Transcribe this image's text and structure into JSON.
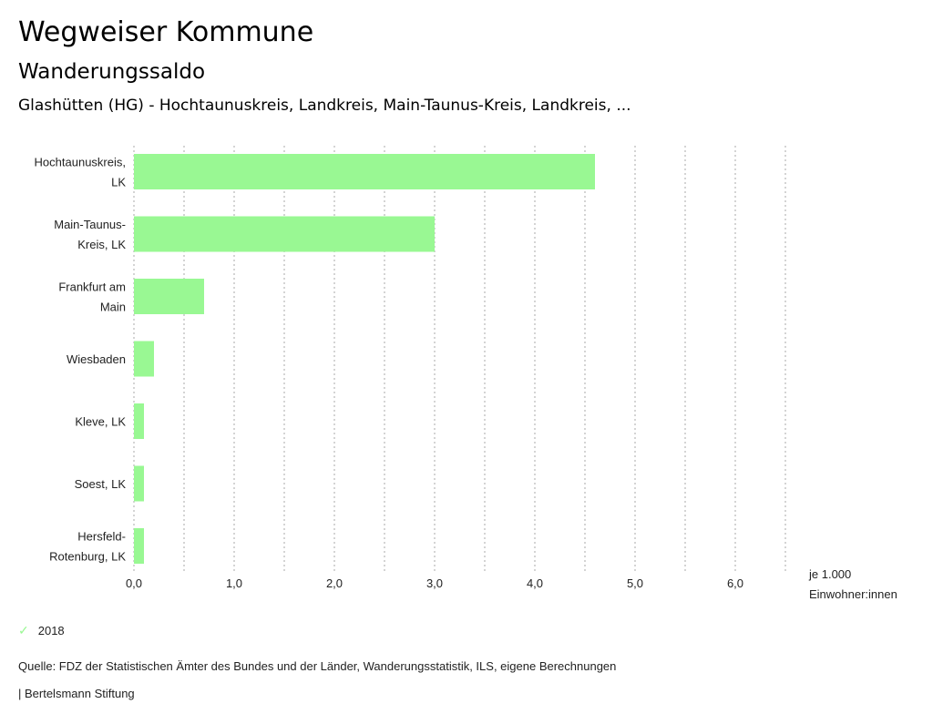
{
  "header": {
    "title": "Wegweiser Kommune",
    "subtitle": "Wanderungssaldo",
    "region": "Glashütten (HG) - Hochtaunuskreis, Landkreis, Main-Taunus-Kreis, Landkreis, ..."
  },
  "chart_data": {
    "type": "bar",
    "orientation": "horizontal",
    "categories": [
      [
        "Hochtaunuskreis,",
        "LK"
      ],
      [
        "Main-Taunus-",
        "Kreis, LK"
      ],
      [
        "Frankfurt am",
        "Main"
      ],
      [
        "Wiesbaden"
      ],
      [
        "Kleve, LK"
      ],
      [
        "Soest, LK"
      ],
      [
        "Hersfeld-",
        "Rotenburg, LK"
      ]
    ],
    "series": [
      {
        "name": "2018",
        "values": [
          4.6,
          3.0,
          0.7,
          0.2,
          0.1,
          0.1,
          0.1
        ],
        "color": "#99f893"
      }
    ],
    "xlim": [
      0,
      6.5
    ],
    "xticks": [
      "0,0",
      "1,0",
      "2,0",
      "3,0",
      "4,0",
      "5,0",
      "6,0"
    ],
    "xlabel": [
      "je 1.000",
      "Einwohner:innen"
    ],
    "grid": true,
    "legend": "bottom-left"
  },
  "legend": {
    "label": "2018",
    "icon": "check-icon"
  },
  "footer": {
    "source": "Quelle: FDZ der Statistischen Ämter des Bundes und der Länder, Wanderungsstatistik, ILS, eigene Berechnungen",
    "brand": "| Bertelsmann Stiftung"
  }
}
